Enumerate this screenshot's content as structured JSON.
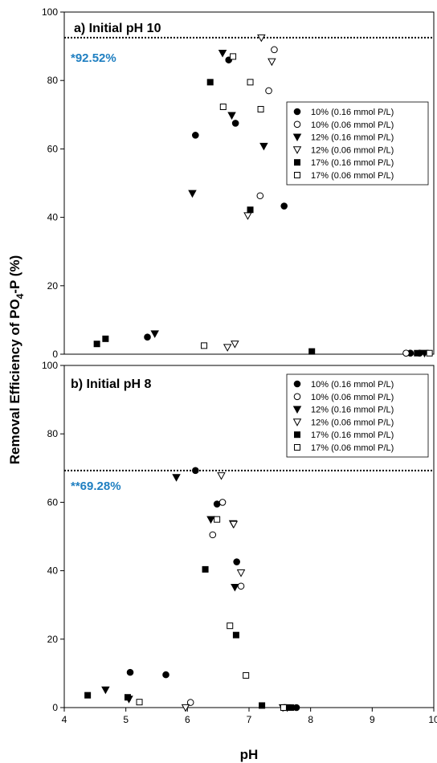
{
  "colors": {
    "ink": "#000000",
    "accent": "#1f7fc1",
    "background": "#ffffff"
  },
  "shared_axis": {
    "xlabel": "pH",
    "ylabel_main": "Removal Efficiency of PO",
    "ylabel_sub": "4",
    "ylabel_tail": "-P (%)"
  },
  "chart_data": [
    {
      "type": "scatter",
      "title": "a) Initial pH 10",
      "annotation": "*92.52%",
      "reference_line": 92.52,
      "xlabel": "pH",
      "ylabel": "Removal Efficiency of PO4-P (%)",
      "xlim": [
        4,
        10
      ],
      "ylim": [
        0,
        100
      ],
      "yticks": [
        0,
        20,
        40,
        60,
        80,
        100
      ],
      "ytick_labels": [
        "0",
        "20",
        "40",
        "60",
        "80",
        "100"
      ],
      "legend_position": "upper-right",
      "series": [
        {
          "name": "10% (0.16 mmol P/L)",
          "marker": "circle-filled",
          "points": [
            [
              5.35,
              5
            ],
            [
              6.13,
              64
            ],
            [
              6.67,
              86
            ],
            [
              6.78,
              67.5
            ],
            [
              7.57,
              43.3
            ],
            [
              9.62,
              0.3
            ],
            [
              9.77,
              0.3
            ]
          ]
        },
        {
          "name": "10% (0.06 mmol P/L)",
          "marker": "circle-open",
          "points": [
            [
              7.18,
              46.3
            ],
            [
              7.32,
              77
            ],
            [
              7.41,
              89
            ],
            [
              9.55,
              0.3
            ]
          ]
        },
        {
          "name": "12% (0.16 mmol P/L)",
          "marker": "triangle-filled",
          "points": [
            [
              5.47,
              6
            ],
            [
              6.08,
              47
            ],
            [
              6.57,
              88
            ],
            [
              6.72,
              69.8
            ],
            [
              7.24,
              60.8
            ],
            [
              9.85,
              0.3
            ]
          ]
        },
        {
          "name": "12% (0.06 mmol P/L)",
          "marker": "triangle-open",
          "points": [
            [
              6.65,
              2
            ],
            [
              6.77,
              3
            ],
            [
              6.98,
              40.5
            ],
            [
              7.2,
              92.5
            ],
            [
              7.37,
              85.5
            ]
          ]
        },
        {
          "name": "17% (0.16 mmol P/L)",
          "marker": "square-filled",
          "points": [
            [
              4.53,
              3
            ],
            [
              4.67,
              4.5
            ],
            [
              6.37,
              79.5
            ],
            [
              7.02,
              42.2
            ],
            [
              8.02,
              0.8
            ],
            [
              9.73,
              0.3
            ]
          ]
        },
        {
          "name": "17% (0.06 mmol P/L)",
          "marker": "square-open",
          "points": [
            [
              6.27,
              2.5
            ],
            [
              6.58,
              72.3
            ],
            [
              6.74,
              87
            ],
            [
              7.02,
              79.5
            ],
            [
              7.19,
              71.6
            ],
            [
              9.93,
              0.3
            ]
          ]
        }
      ]
    },
    {
      "type": "scatter",
      "title": "b) Initial pH 8",
      "annotation": "**69.28%",
      "reference_line": 69.28,
      "xlabel": "pH",
      "ylabel": "Removal Efficiency of PO4-P (%)",
      "xlim": [
        4,
        10
      ],
      "ylim": [
        0,
        100
      ],
      "xticks": [
        4,
        5,
        6,
        7,
        8,
        9,
        10
      ],
      "xtick_labels": [
        "4",
        "5",
        "6",
        "7",
        "8",
        "9",
        "10"
      ],
      "yticks": [
        0,
        20,
        40,
        60,
        80,
        100
      ],
      "ytick_labels": [
        "0",
        "20",
        "40",
        "60",
        "80",
        "100"
      ],
      "legend_position": "upper-right",
      "series": [
        {
          "name": "10% (0.16 mmol P/L)",
          "marker": "circle-filled",
          "points": [
            [
              5.07,
              10.3
            ],
            [
              5.65,
              9.6
            ],
            [
              6.13,
              69.3
            ],
            [
              6.48,
              59.5
            ],
            [
              6.8,
              42.6
            ],
            [
              7.77,
              0
            ]
          ]
        },
        {
          "name": "10% (0.06 mmol P/L)",
          "marker": "circle-open",
          "points": [
            [
              6.05,
              1.5
            ],
            [
              6.41,
              50.5
            ],
            [
              6.57,
              60
            ],
            [
              6.87,
              35.5
            ],
            [
              7.58,
              0
            ]
          ]
        },
        {
          "name": "12% (0.16 mmol P/L)",
          "marker": "triangle-filled",
          "points": [
            [
              4.67,
              5.2
            ],
            [
              5.05,
              2.5
            ],
            [
              5.82,
              67.3
            ],
            [
              6.38,
              55
            ],
            [
              6.74,
              53.8
            ],
            [
              6.77,
              35.2
            ],
            [
              7.62,
              0
            ]
          ]
        },
        {
          "name": "12% (0.06 mmol P/L)",
          "marker": "triangle-open",
          "points": [
            [
              5.97,
              0
            ],
            [
              6.55,
              67.8
            ],
            [
              6.75,
              53.6
            ],
            [
              6.87,
              39.4
            ],
            [
              7.55,
              0
            ]
          ]
        },
        {
          "name": "17% (0.16 mmol P/L)",
          "marker": "square-filled",
          "points": [
            [
              4.38,
              3.6
            ],
            [
              5.03,
              3
            ],
            [
              6.29,
              40.4
            ],
            [
              6.79,
              21.2
            ],
            [
              7.21,
              0.6
            ],
            [
              7.68,
              0
            ]
          ]
        },
        {
          "name": "17% (0.06 mmol P/L)",
          "marker": "square-open",
          "points": [
            [
              5.22,
              1.6
            ],
            [
              6.48,
              55
            ],
            [
              6.69,
              23.9
            ],
            [
              6.95,
              9.4
            ],
            [
              7.56,
              0
            ]
          ]
        }
      ]
    }
  ]
}
